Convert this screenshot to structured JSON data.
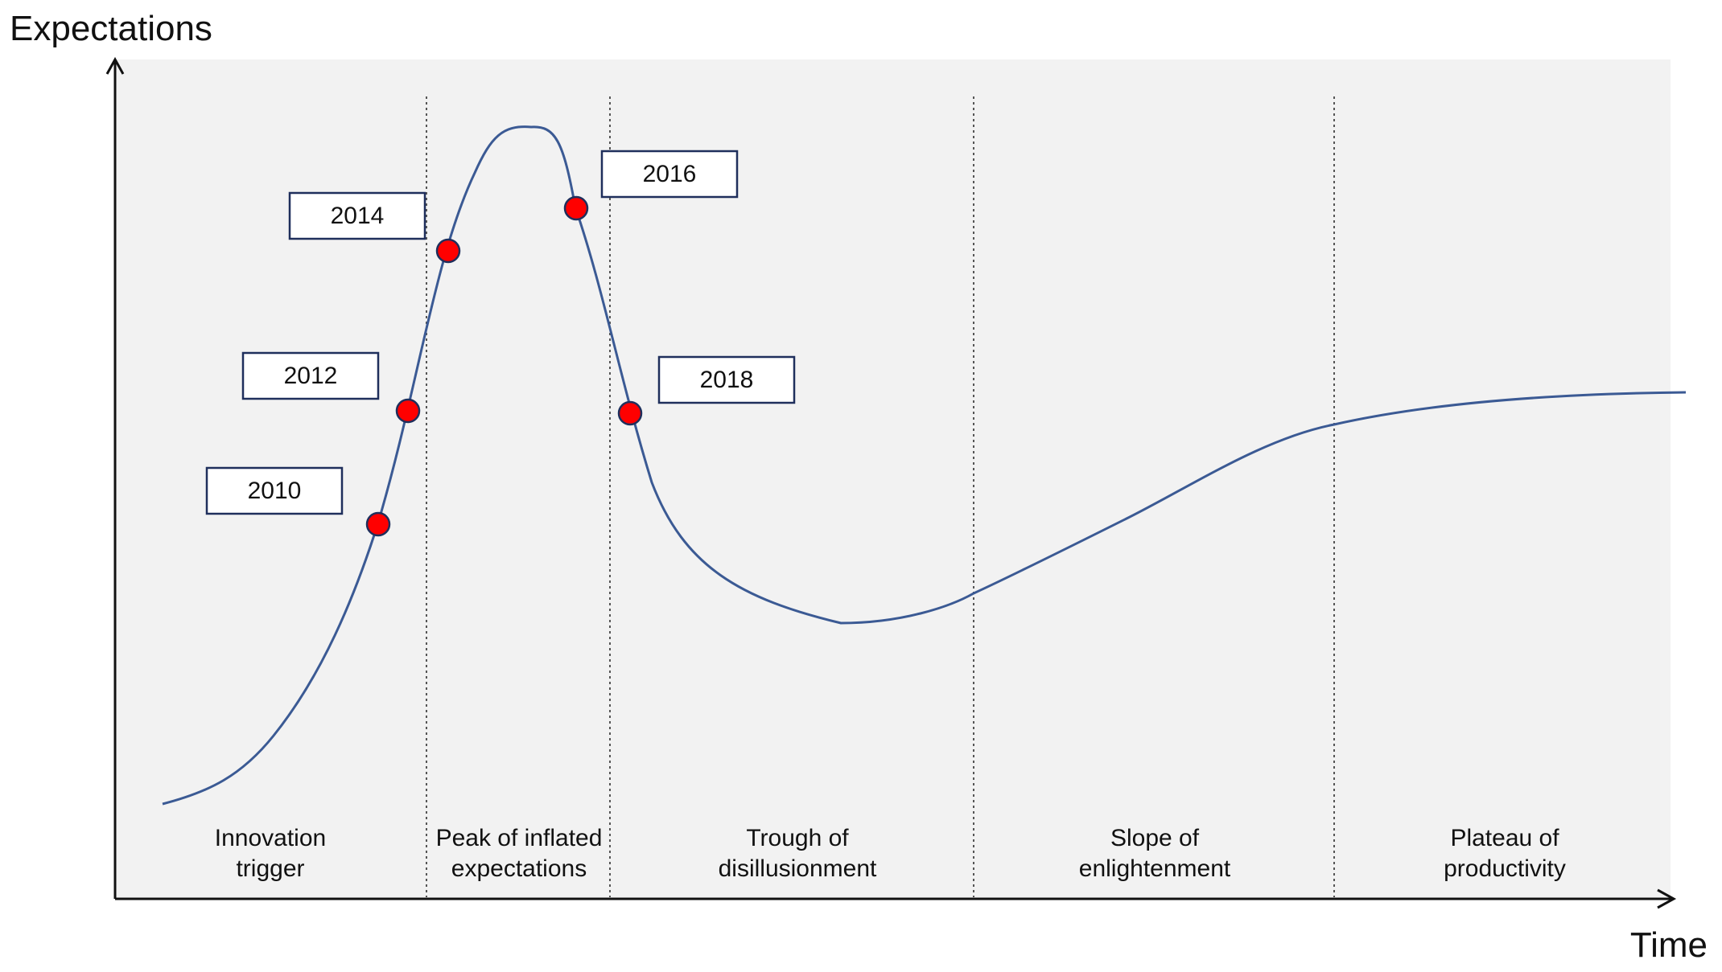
{
  "axes": {
    "y_label": "Expectations",
    "x_label": "Time"
  },
  "phases": [
    {
      "line1": "Innovation",
      "line2": "trigger"
    },
    {
      "line1": "Peak of inflated",
      "line2": "expectations"
    },
    {
      "line1": "Trough of",
      "line2": "disillusionment"
    },
    {
      "line1": "Slope of",
      "line2": "enlightenment"
    },
    {
      "line1": "Plateau of",
      "line2": "productivity"
    }
  ],
  "milestones": [
    {
      "year": "2010"
    },
    {
      "year": "2012"
    },
    {
      "year": "2014"
    },
    {
      "year": "2016"
    },
    {
      "year": "2018"
    }
  ],
  "colors": {
    "plot_background": "#f2f2f2",
    "curve": "#3b5a94",
    "marker_fill": "#ff0000",
    "box_border": "#1f2f5c"
  }
}
